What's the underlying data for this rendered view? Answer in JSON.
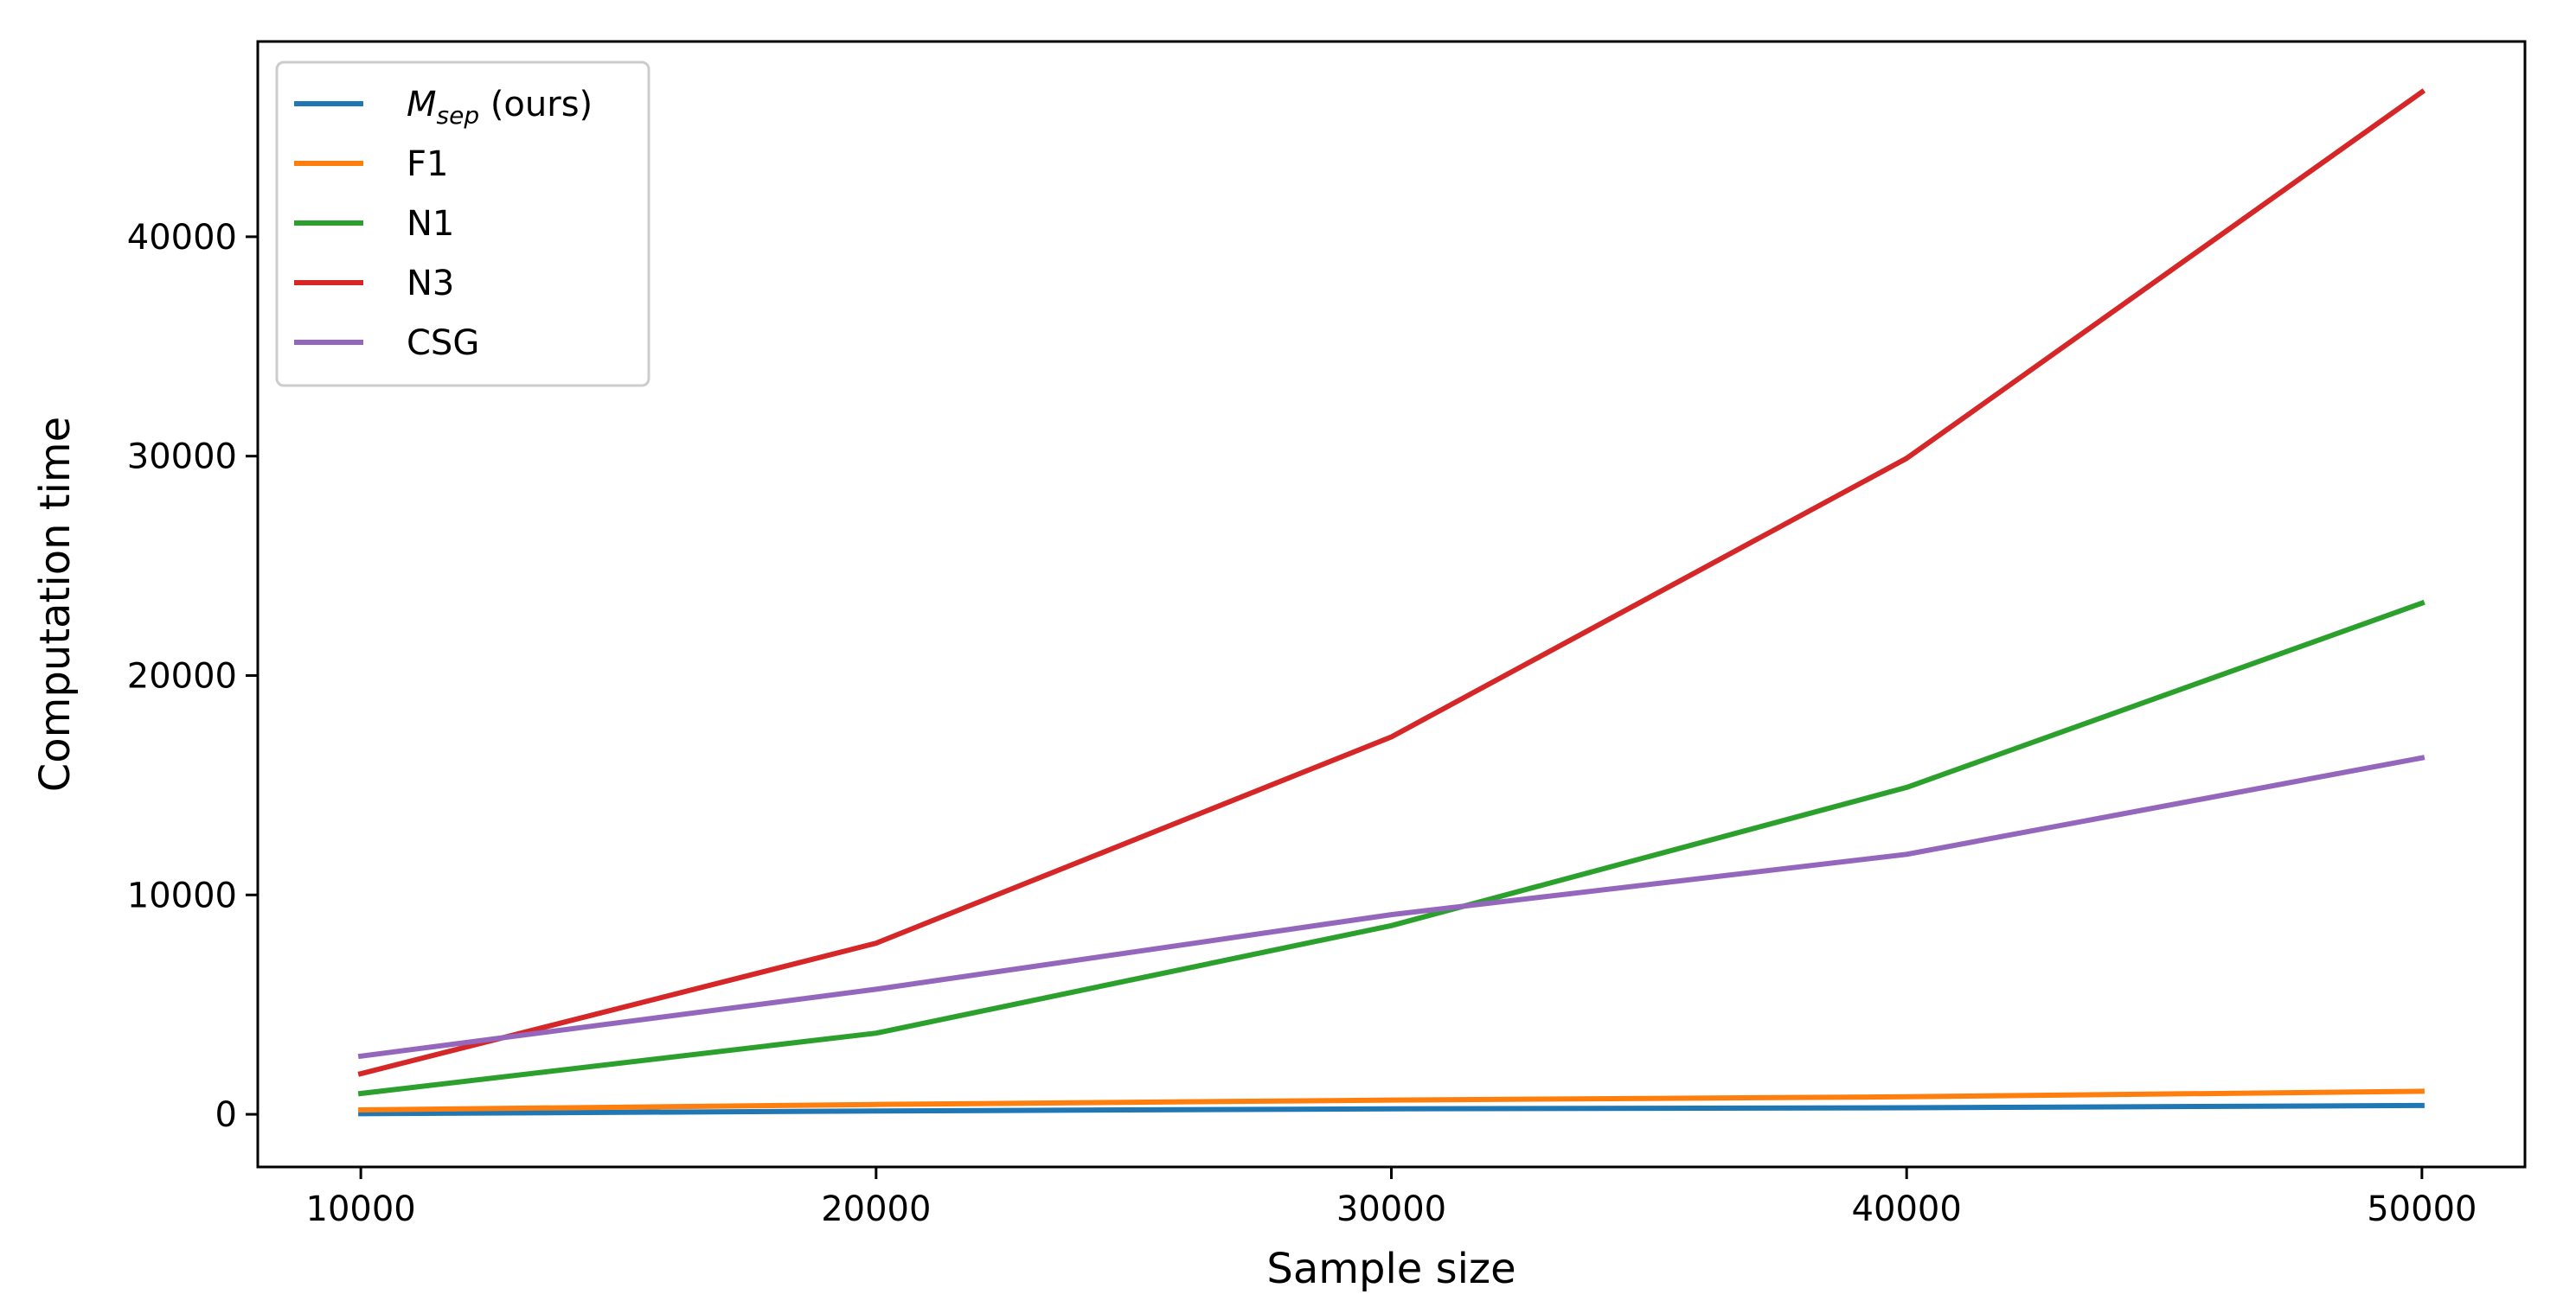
{
  "chart_data": {
    "type": "line",
    "title": "",
    "xlabel": "Sample size",
    "ylabel": "Computation time",
    "x": [
      10000,
      20000,
      30000,
      40000,
      50000
    ],
    "xlim": [
      8000,
      52000
    ],
    "ylim": [
      -2400,
      48900
    ],
    "xticks": [
      10000,
      20000,
      30000,
      40000,
      50000
    ],
    "yticks": [
      0,
      10000,
      20000,
      30000,
      40000
    ],
    "grid": false,
    "legend_position": "top-left",
    "series": [
      {
        "name": "M_sep (ours)",
        "label_main": "M",
        "label_sub": "sep",
        "label_suffix": " (ours)",
        "color": "#1f77b4",
        "values": [
          30,
          150,
          250,
          300,
          400
        ]
      },
      {
        "name": "F1",
        "label_main": "F1",
        "color": "#ff7f0e",
        "values": [
          200,
          450,
          650,
          800,
          1050
        ]
      },
      {
        "name": "N1",
        "label_main": "N1",
        "color": "#2ca02c",
        "values": [
          950,
          3700,
          8600,
          14900,
          23300
        ]
      },
      {
        "name": "N3",
        "label_main": "N3",
        "color": "#d62728",
        "values": [
          1850,
          7800,
          17200,
          29900,
          46600
        ]
      },
      {
        "name": "CSG",
        "label_main": "CSG",
        "color": "#9467bd",
        "values": [
          2650,
          5700,
          9100,
          11850,
          16250
        ]
      }
    ]
  }
}
